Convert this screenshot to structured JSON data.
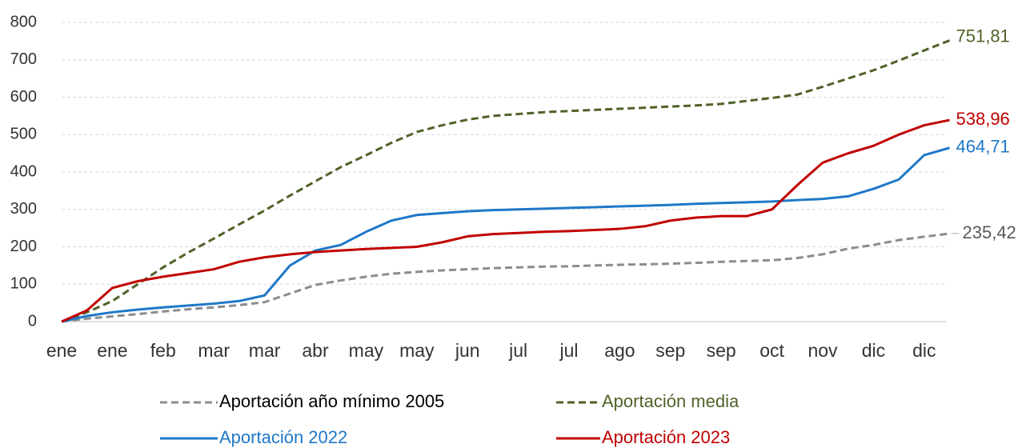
{
  "chart_data": {
    "type": "line",
    "categories": [
      "ene",
      null,
      "ene",
      null,
      "feb",
      null,
      "mar",
      null,
      "mar",
      null,
      "abr",
      null,
      "may",
      null,
      "may",
      null,
      "jun",
      null,
      "jul",
      null,
      "jul",
      null,
      "ago",
      null,
      "sep",
      null,
      "sep",
      null,
      "oct",
      null,
      "nov",
      null,
      "dic",
      null,
      "dic",
      null
    ],
    "ylim": [
      0,
      800
    ],
    "yticks": [
      0,
      100,
      200,
      300,
      400,
      500,
      600,
      700,
      800
    ],
    "grid": true,
    "series": [
      {
        "name": "Aportación año mínimo 2005",
        "color": "#8c8c8c",
        "text_color": "#000000",
        "dash": true,
        "values": [
          0,
          8,
          14,
          20,
          27,
          33,
          38,
          44,
          52,
          75,
          98,
          110,
          120,
          128,
          133,
          137,
          140,
          143,
          145,
          147,
          148,
          150,
          152,
          153,
          155,
          157,
          160,
          162,
          164,
          170,
          180,
          195,
          205,
          218,
          227,
          235.42
        ],
        "value_labels": [
          null,
          null,
          null,
          null,
          null,
          null,
          null,
          null,
          null,
          null,
          null,
          null,
          null,
          null,
          null,
          null,
          null,
          null,
          null,
          null,
          null,
          null,
          null,
          null,
          null,
          null,
          null,
          null,
          null,
          null,
          null,
          null,
          null,
          null,
          null,
          "235,42"
        ]
      },
      {
        "name": "Aportación media",
        "color": "#4f6228",
        "text_color": "#4f6228",
        "dash": true,
        "values": [
          0,
          25,
          55,
          100,
          145,
          185,
          222,
          260,
          297,
          337,
          375,
          413,
          445,
          478,
          507,
          525,
          540,
          550,
          555,
          560,
          563,
          566,
          569,
          572,
          575,
          578,
          582,
          590,
          598,
          607,
          628,
          650,
          672,
          698,
          725,
          751.81
        ],
        "value_labels": [
          null,
          null,
          null,
          null,
          null,
          null,
          null,
          null,
          null,
          null,
          null,
          null,
          null,
          null,
          null,
          null,
          null,
          null,
          null,
          null,
          null,
          null,
          null,
          null,
          null,
          null,
          null,
          null,
          null,
          null,
          null,
          null,
          null,
          null,
          null,
          "751,81"
        ]
      },
      {
        "name": "Aportación 2022",
        "color": "#1f78c8",
        "text_color": "#1f78c8",
        "dash": false,
        "values": [
          0,
          15,
          25,
          32,
          38,
          43,
          48,
          55,
          70,
          150,
          190,
          205,
          240,
          270,
          285,
          290,
          295,
          298,
          300,
          302,
          304,
          306,
          308,
          310,
          312,
          315,
          317,
          319,
          321,
          325,
          328,
          335,
          355,
          380,
          445,
          464.71
        ],
        "value_labels": [
          null,
          null,
          null,
          null,
          null,
          null,
          null,
          null,
          null,
          null,
          null,
          null,
          null,
          null,
          null,
          null,
          null,
          null,
          null,
          null,
          null,
          null,
          null,
          null,
          null,
          null,
          null,
          null,
          null,
          null,
          null,
          null,
          null,
          null,
          null,
          "464,71"
        ]
      },
      {
        "name": "Aportación 2023",
        "color": "#c00000",
        "text_color": "#c00000",
        "dash": false,
        "values": [
          0,
          30,
          90,
          108,
          120,
          130,
          140,
          160,
          172,
          180,
          186,
          190,
          194,
          197,
          200,
          212,
          228,
          234,
          237,
          240,
          242,
          245,
          248,
          255,
          270,
          278,
          282,
          282,
          300,
          365,
          425,
          450,
          470,
          500,
          525,
          538.96
        ],
        "value_labels": [
          null,
          null,
          null,
          null,
          null,
          null,
          null,
          null,
          null,
          null,
          null,
          null,
          null,
          null,
          null,
          null,
          null,
          null,
          null,
          null,
          null,
          null,
          null,
          null,
          null,
          null,
          null,
          null,
          null,
          null,
          null,
          null,
          null,
          null,
          null,
          "538,96"
        ]
      }
    ]
  }
}
